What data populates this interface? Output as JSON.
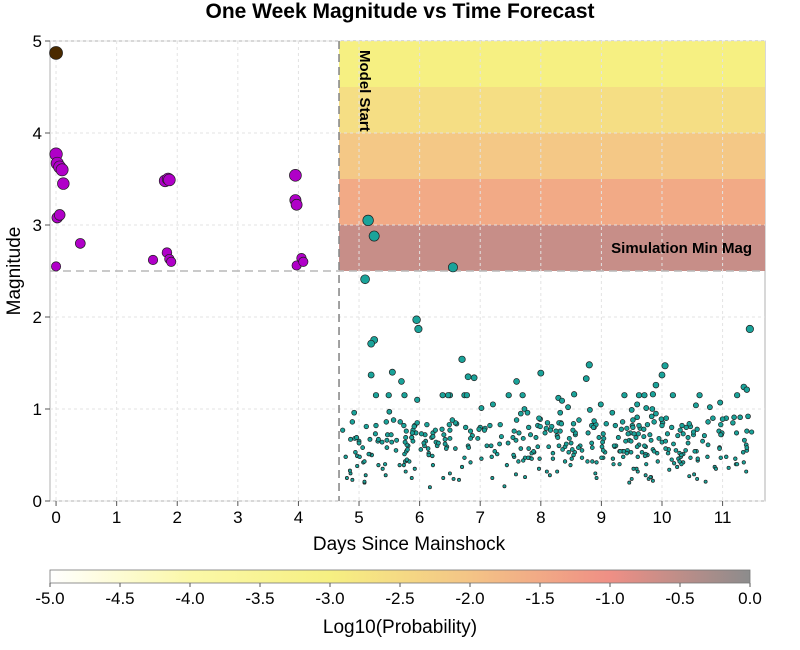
{
  "chart_data": {
    "type": "scatter",
    "title": "One Week Magnitude vs Time Forecast",
    "xlabel": "Days Since Mainshock",
    "ylabel": "Magnitude",
    "xlim": [
      -0.1,
      11.7
    ],
    "ylim": [
      0,
      5
    ],
    "xticks": [
      "0",
      "1",
      "2",
      "3",
      "4",
      "5",
      "6",
      "7",
      "8",
      "9",
      "10",
      "11"
    ],
    "yticks": [
      "0",
      "1",
      "2",
      "3",
      "4",
      "5"
    ],
    "grid": true,
    "model_start_day": 4.67,
    "simulation_min_mag": 2.5,
    "annotations": {
      "model_start": "Model Start",
      "simulation_min_mag": "Simulation Min Mag"
    },
    "forecast_heatmap": {
      "x_range": [
        4.67,
        11.7
      ],
      "mag_bins": [
        {
          "mag_min": 2.5,
          "mag_max": 3.0,
          "log10_prob": -0.6
        },
        {
          "mag_min": 3.0,
          "mag_max": 3.5,
          "log10_prob": -1.5
        },
        {
          "mag_min": 3.5,
          "mag_max": 4.0,
          "log10_prob": -2.1
        },
        {
          "mag_min": 4.0,
          "mag_max": 4.5,
          "log10_prob": -2.6
        },
        {
          "mag_min": 4.5,
          "mag_max": 5.0,
          "log10_prob": -3.0
        }
      ]
    },
    "colorbar": {
      "label": "Log10(Probability)",
      "range": [
        -5.0,
        0.0
      ],
      "ticks": [
        "-5.0",
        "-4.5",
        "-4.0",
        "-3.5",
        "-3.0",
        "-2.5",
        "-2.0",
        "-1.5",
        "-1.0",
        "-0.5",
        "0.0"
      ],
      "colors": [
        "#ffffff",
        "#fbf8a8",
        "#f6f082",
        "#f4c486",
        "#ef8f85",
        "#8c8c8c"
      ]
    },
    "series": [
      {
        "color": "#4a2a00",
        "points": [
          [
            0.0,
            4.87
          ]
        ]
      },
      {
        "color": "#b000c8",
        "points": [
          [
            0.0,
            3.77
          ],
          [
            0.02,
            3.67
          ],
          [
            0.06,
            3.63
          ],
          [
            0.1,
            3.6
          ],
          [
            0.12,
            3.45
          ],
          [
            0.02,
            3.08
          ],
          [
            0.06,
            3.11
          ],
          [
            0.0,
            2.55
          ],
          [
            0.4,
            2.8
          ],
          [
            1.6,
            2.62
          ],
          [
            1.8,
            3.48
          ],
          [
            1.85,
            3.5
          ],
          [
            1.87,
            3.49
          ],
          [
            1.83,
            2.7
          ],
          [
            1.87,
            2.63
          ],
          [
            1.9,
            2.6
          ],
          [
            3.95,
            3.54
          ],
          [
            3.95,
            3.27
          ],
          [
            3.97,
            3.22
          ],
          [
            3.97,
            2.56
          ],
          [
            4.05,
            2.64
          ],
          [
            4.08,
            2.6
          ]
        ]
      },
      {
        "color": "#1aa39a",
        "points": [
          [
            5.15,
            3.05
          ],
          [
            5.25,
            2.88
          ],
          [
            6.55,
            2.54
          ],
          [
            5.1,
            2.41
          ],
          [
            5.95,
            1.97
          ],
          [
            5.98,
            1.87
          ],
          [
            11.45,
            1.87
          ],
          [
            5.25,
            1.75
          ],
          [
            5.2,
            1.71
          ],
          [
            6.7,
            1.54
          ],
          [
            8.8,
            1.48
          ],
          [
            10.05,
            1.47
          ],
          [
            5.55,
            1.4
          ],
          [
            8.0,
            1.39
          ],
          [
            5.2,
            1.37
          ],
          [
            10.0,
            1.37
          ],
          [
            6.8,
            1.35
          ],
          [
            6.9,
            1.34
          ],
          [
            7.6,
            1.3
          ],
          [
            8.75,
            1.33
          ],
          [
            5.7,
            1.3
          ],
          [
            11.35,
            1.24
          ],
          [
            11.4,
            1.21
          ],
          [
            9.9,
            1.26
          ],
          [
            9.85,
            1.16
          ],
          [
            8.55,
            1.16
          ]
        ]
      },
      {
        "color": "#1aa39a",
        "points": []
      }
    ]
  }
}
